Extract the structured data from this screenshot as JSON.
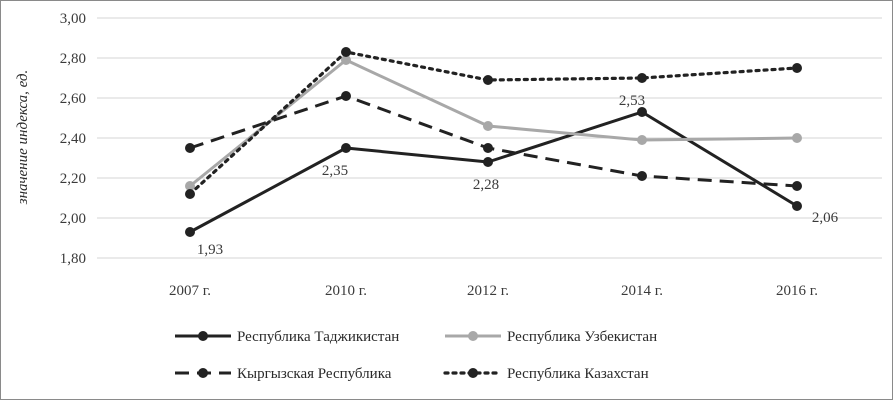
{
  "chart_data": {
    "type": "line",
    "categories": [
      "2007 г.",
      "2010 г.",
      "2012 г.",
      "2014 г.",
      "2016 г."
    ],
    "ylabel": "значение индекса, ед.",
    "ylim": [
      1.8,
      3.0
    ],
    "yticks": [
      "1,80",
      "2,00",
      "2,20",
      "2,40",
      "2,60",
      "2,80",
      "3,00"
    ],
    "grid": true,
    "legend_position": "bottom",
    "series": [
      {
        "name": "Республика Таджикистан",
        "values": [
          1.93,
          2.35,
          2.28,
          2.53,
          2.06
        ],
        "labels": [
          "1,93",
          "2,35",
          "2,28",
          "2,53",
          "2,06"
        ],
        "color": "#222222",
        "style": "solid"
      },
      {
        "name": "Республика Узбекистан",
        "values": [
          2.16,
          2.79,
          2.46,
          2.39,
          2.4
        ],
        "color": "#a8a8a8",
        "style": "solid"
      },
      {
        "name": "Кыргызская Республика",
        "values": [
          2.35,
          2.61,
          2.35,
          2.21,
          2.16
        ],
        "color": "#222222",
        "style": "dashed"
      },
      {
        "name": "Республика Казахстан",
        "values": [
          2.12,
          2.83,
          2.69,
          2.7,
          2.75
        ],
        "color": "#222222",
        "style": "dotted"
      }
    ]
  }
}
